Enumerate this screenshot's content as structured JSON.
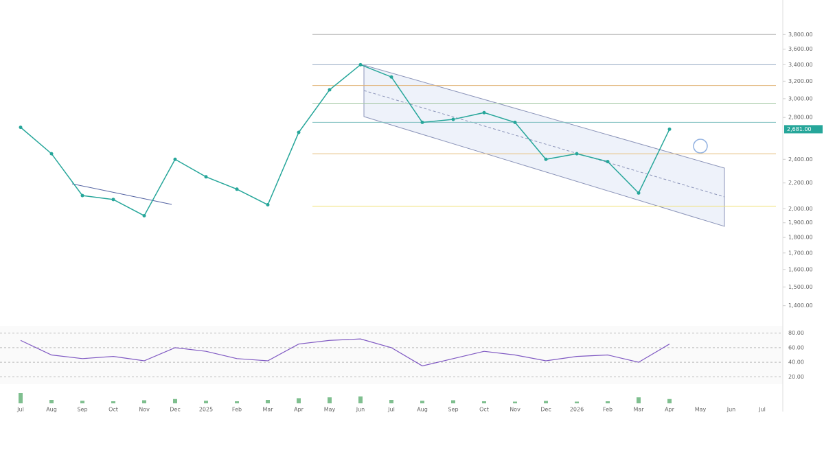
{
  "chart_data": {
    "type": "line",
    "categories": [
      "Jul",
      "Aug",
      "Sep",
      "Oct",
      "Nov",
      "Dec",
      "2025",
      "Feb",
      "Mar",
      "Apr",
      "May",
      "Jun",
      "Jul",
      "Aug",
      "Sep",
      "Oct",
      "Nov",
      "Dec",
      "2026",
      "Feb",
      "Mar",
      "Apr",
      "May",
      "Jun",
      "Jul"
    ],
    "series": [
      {
        "color": "#26a69a",
        "values": [
          2700,
          2450,
          2100,
          2070,
          1950,
          2400,
          2250,
          2150,
          2030,
          2650,
          3100,
          3400,
          3250,
          2750,
          2780,
          2850,
          2750,
          2400,
          2450,
          2380,
          2120,
          2681,
          null,
          null,
          null
        ]
      }
    ],
    "log_scale": true,
    "ylim": [
      1300,
      4000
    ],
    "yticks": [
      {
        "value": 3800,
        "label": "3,800.00"
      },
      {
        "value": 3600,
        "label": "3,600.00"
      },
      {
        "value": 3400,
        "label": "3,400.00"
      },
      {
        "value": 3200,
        "label": "3,200.00"
      },
      {
        "value": 3000,
        "label": "3,000.00"
      },
      {
        "value": 2800,
        "label": "2,800.00"
      },
      {
        "value": 2400,
        "label": "2,400.00"
      },
      {
        "value": 2200,
        "label": "2,200.00"
      },
      {
        "value": 2000,
        "label": "2,000.00"
      },
      {
        "value": 1900,
        "label": "1,900.00"
      },
      {
        "value": 1800,
        "label": "1,800.00"
      },
      {
        "value": 1700,
        "label": "1,700.00"
      },
      {
        "value": 1600,
        "label": "1,600.00"
      },
      {
        "value": 1500,
        "label": "1,500.00"
      },
      {
        "value": 1400,
        "label": "1,400.00"
      }
    ],
    "last_price": {
      "value": 2681,
      "label": "2,681.00"
    },
    "levels": [
      {
        "value": 3800,
        "color": "#b0b0b0"
      },
      {
        "value": 3400,
        "color": "#90a4c0"
      },
      {
        "value": 3150,
        "color": "#e0b070"
      },
      {
        "value": 2950,
        "color": "#a5c8a5"
      },
      {
        "value": 2750,
        "color": "#80c0c0"
      },
      {
        "value": 2450,
        "color": "#e8c080"
      },
      {
        "value": 2020,
        "color": "#f0e070"
      }
    ],
    "rsi": {
      "color": "#7e57c2",
      "ylim": [
        10,
        90
      ],
      "yticks": [
        {
          "value": 80,
          "label": "80.00"
        },
        {
          "value": 60,
          "label": "60.00"
        },
        {
          "value": 40,
          "label": "40.00"
        },
        {
          "value": 20,
          "label": "20.00"
        }
      ],
      "values": [
        70,
        50,
        45,
        48,
        42,
        60,
        55,
        45,
        42,
        65,
        70,
        72,
        60,
        35,
        45,
        55,
        50,
        42,
        48,
        50,
        40,
        65,
        null,
        null,
        null
      ]
    },
    "volume": {
      "color": "#7fbf8f",
      "ylim": [
        0,
        100
      ],
      "values": [
        60,
        20,
        15,
        12,
        18,
        25,
        15,
        12,
        20,
        30,
        35,
        40,
        20,
        15,
        18,
        12,
        10,
        14,
        10,
        12,
        35,
        25,
        null,
        null,
        null
      ]
    }
  }
}
